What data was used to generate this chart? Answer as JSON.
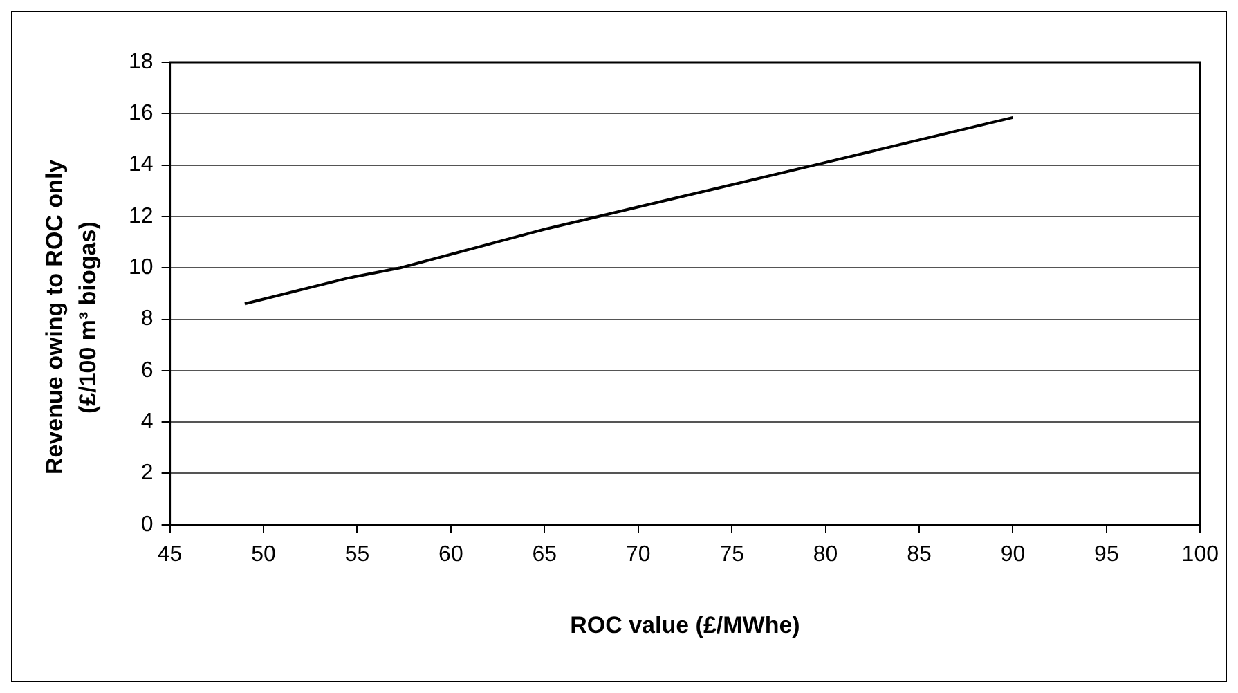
{
  "chart_data": {
    "type": "line",
    "xlabel": "ROC value (£/MWhe)",
    "ylabel": "Revenue owing to ROC only (£/100 m³ biogas)",
    "x": [
      49,
      54.5,
      57.3,
      65,
      80,
      90
    ],
    "series": [
      {
        "color": "#000000",
        "values": [
          8.6,
          9.6,
          10.0,
          11.5,
          14.1,
          15.85
        ]
      }
    ],
    "xlim": [
      45,
      100
    ],
    "xticks": [
      45,
      50,
      55,
      60,
      65,
      70,
      75,
      80,
      85,
      90,
      95,
      100
    ],
    "ylim": [
      0,
      18
    ],
    "yticks": [
      0,
      2,
      4,
      6,
      8,
      10,
      12,
      14,
      16,
      18
    ],
    "grid": "y",
    "legend": false,
    "marker": "none",
    "line_style": "solid"
  }
}
